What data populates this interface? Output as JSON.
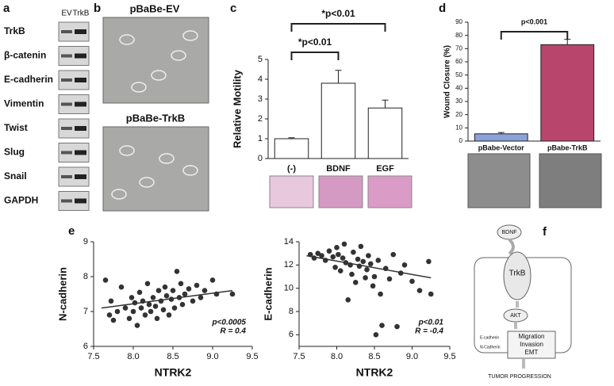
{
  "panel_labels": [
    "a",
    "b",
    "c",
    "d",
    "e",
    "f"
  ],
  "blot": {
    "lanes": [
      "EV",
      "TrkB"
    ],
    "proteins": [
      "TrkB",
      "β-catenin",
      "E-cadherin",
      "Vimentin",
      "Twist",
      "Slug",
      "Snail",
      "GAPDH"
    ]
  },
  "micrographs": {
    "titles": [
      "pBaBe-EV",
      "pBaBe-TrkB"
    ]
  },
  "chart_data": [
    {
      "type": "bar",
      "ylabel": "Relative Motility",
      "categories": [
        "(-)",
        "BDNF",
        "EGF"
      ],
      "values": [
        1.0,
        3.8,
        2.55
      ],
      "errors": [
        0.05,
        0.65,
        0.4
      ],
      "color": "#ffffff",
      "ylim": [
        0,
        5
      ],
      "yticks": [
        0,
        1,
        2,
        3,
        4,
        5
      ],
      "annotations": [
        "*p<0.01",
        "*p<0.01"
      ]
    },
    {
      "type": "bar",
      "ylabel": "Wound Closure (%)",
      "categories": [
        "pBabe-Vector",
        "pBabe-TrkB"
      ],
      "values": [
        5.5,
        73
      ],
      "errors": [
        1,
        4
      ],
      "colors": [
        "#8aa2d8",
        "#b8456b"
      ],
      "ylim": [
        0,
        90
      ],
      "yticks": [
        0,
        10,
        20,
        30,
        40,
        50,
        60,
        70,
        80,
        90
      ],
      "annotations": [
        "p<0.001"
      ]
    },
    {
      "type": "scatter",
      "xlabel": "NTRK2",
      "ylabel": "N-cadherin",
      "color": "#333333",
      "xlim": [
        7.5,
        9.5
      ],
      "xticks": [
        7.5,
        {
          "value": 8,
          "label": "8.0"
        },
        8.5,
        {
          "value": 9,
          "label": "9.0"
        },
        9.5
      ],
      "ylim": [
        6,
        9
      ],
      "yticks": [
        6,
        7,
        8,
        9
      ],
      "annotations": [
        "p<0.0005",
        "R = 0.4"
      ],
      "x": [
        7.65,
        7.7,
        7.72,
        7.75,
        7.8,
        7.85,
        7.9,
        7.95,
        7.98,
        8.0,
        8.02,
        8.05,
        8.08,
        8.1,
        8.12,
        8.15,
        8.18,
        8.2,
        8.22,
        8.25,
        8.28,
        8.3,
        8.32,
        8.35,
        8.38,
        8.4,
        8.42,
        8.45,
        8.48,
        8.5,
        8.52,
        8.55,
        8.58,
        8.6,
        8.62,
        8.65,
        8.7,
        8.75,
        8.8,
        8.85,
        8.9,
        9.0,
        9.05,
        9.25
      ],
      "y": [
        7.9,
        6.9,
        7.3,
        6.75,
        7.0,
        7.7,
        7.1,
        6.8,
        7.4,
        7.0,
        7.25,
        6.6,
        7.55,
        7.1,
        7.3,
        6.9,
        7.8,
        7.2,
        7.0,
        7.4,
        7.15,
        6.8,
        7.6,
        7.3,
        7.05,
        7.7,
        7.45,
        6.9,
        7.35,
        7.6,
        7.1,
        8.15,
        7.4,
        7.8,
        7.2,
        7.5,
        7.65,
        7.3,
        7.75,
        7.4,
        7.6,
        7.9,
        7.5,
        7.5
      ],
      "trend": {
        "x": [
          7.6,
          9.25
        ],
        "y": [
          7.1,
          7.6
        ]
      }
    },
    {
      "type": "scatter",
      "xlabel": "NTRK2",
      "ylabel": "E-cadherin",
      "color": "#333333",
      "xlim": [
        7.5,
        9.5
      ],
      "xticks": [
        7.5,
        {
          "value": 8,
          "label": "8.0"
        },
        8.5,
        {
          "value": 9,
          "label": "9.0"
        },
        9.5
      ],
      "ylim": [
        5,
        14
      ],
      "yticks": [
        6,
        8,
        10,
        12,
        14
      ],
      "annotations": [
        "p<0.01",
        "R = -0.4"
      ],
      "x": [
        7.65,
        7.7,
        7.75,
        7.8,
        7.85,
        7.9,
        7.95,
        7.98,
        8.0,
        8.02,
        8.05,
        8.08,
        8.1,
        8.12,
        8.15,
        8.18,
        8.2,
        8.22,
        8.25,
        8.28,
        8.3,
        8.32,
        8.35,
        8.38,
        8.4,
        8.42,
        8.45,
        8.48,
        8.5,
        8.52,
        8.55,
        8.58,
        8.6,
        8.65,
        8.7,
        8.75,
        8.8,
        8.85,
        8.9,
        9.0,
        9.1,
        9.22,
        9.25
      ],
      "y": [
        12.9,
        12.6,
        13.0,
        12.8,
        12.4,
        13.2,
        12.7,
        11.8,
        13.5,
        12.9,
        11.5,
        12.6,
        13.8,
        12.2,
        9.0,
        12.0,
        11.2,
        13.1,
        10.5,
        12.5,
        11.9,
        13.6,
        12.3,
        10.9,
        11.6,
        12.8,
        12.1,
        10.2,
        11.0,
        6.0,
        12.4,
        9.5,
        6.8,
        11.7,
        10.8,
        12.9,
        6.7,
        11.3,
        12.0,
        10.6,
        9.8,
        12.3,
        9.5
      ],
      "trend": {
        "x": [
          7.6,
          9.25
        ],
        "y": [
          12.8,
          10.9
        ]
      }
    }
  ],
  "diagram": {
    "ligand": "BDNF",
    "receptor": "TrkB",
    "kinase": "AKT",
    "markers": [
      "E-cadherin",
      "N-Cadherin"
    ],
    "outcomes": [
      "Migration",
      "Invasion",
      "EMT"
    ],
    "result": "TUMOR PROGRESSION"
  }
}
